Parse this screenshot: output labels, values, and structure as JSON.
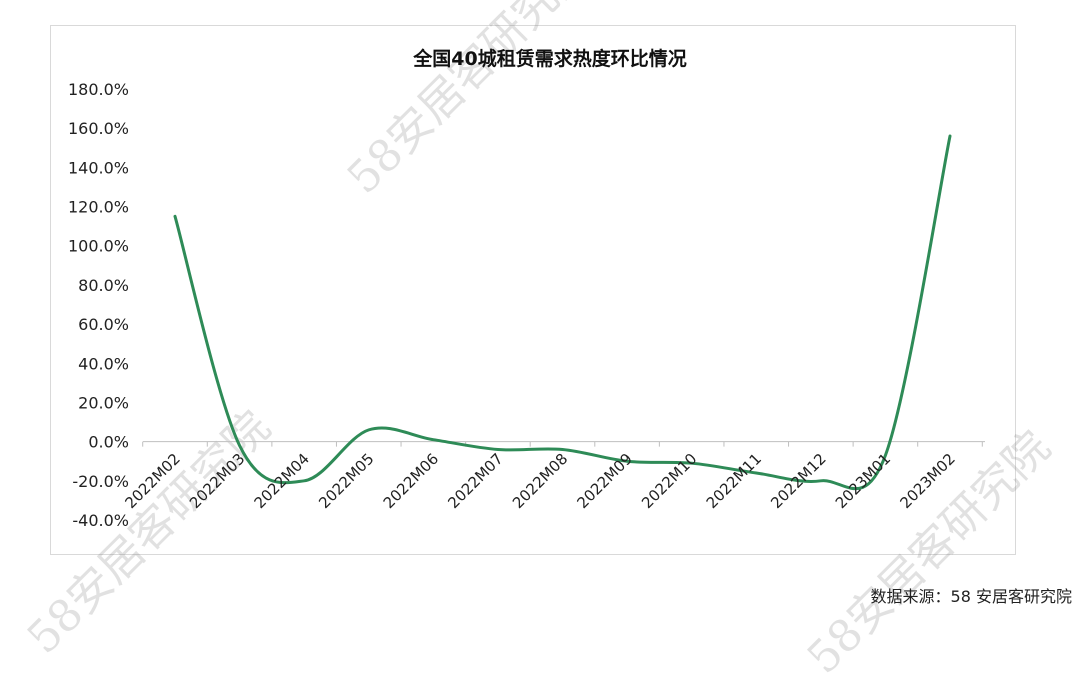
{
  "chart_data": {
    "type": "line",
    "title": "全国40城租赁需求热度环比情况",
    "categories": [
      "2022M02",
      "2022M03",
      "2022M04",
      "2022M05",
      "2022M06",
      "2022M07",
      "2022M08",
      "2022M09",
      "2022M10",
      "2022M11",
      "2022M12",
      "2023M01",
      "2023M02"
    ],
    "series": [
      {
        "values": [
          115,
          -2,
          -20,
          6,
          1,
          -4,
          -4,
          -10,
          -11,
          -16,
          -20,
          -7,
          156
        ]
      }
    ],
    "ylim": [
      -40,
      180
    ],
    "yticks": [
      -40,
      -20,
      0,
      20,
      40,
      60,
      80,
      100,
      120,
      140,
      160,
      180
    ],
    "yticklabels": [
      "-40.0%",
      "-20.0%",
      "0.0%",
      "20.0%",
      "40.0%",
      "60.0%",
      "80.0%",
      "100.0%",
      "120.0%",
      "140.0%",
      "160.0%",
      "180.0%"
    ],
    "grid": false,
    "line_color": "#2e8b57"
  },
  "source_text": "数据来源：58 安居客研究院",
  "watermark_text": "58安居客研究院"
}
